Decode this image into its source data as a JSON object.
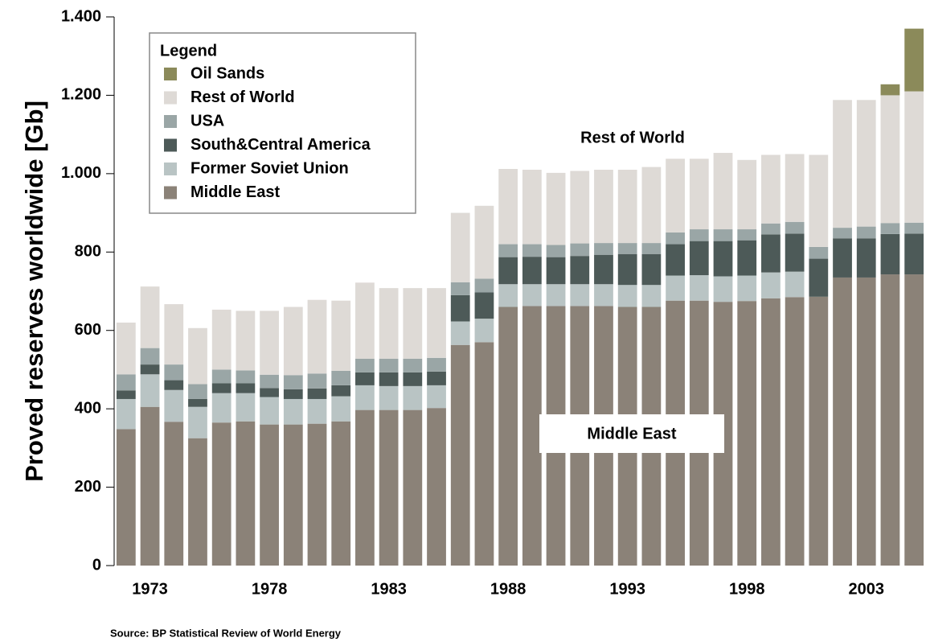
{
  "chart_data": {
    "type": "stacked_bar",
    "y_label": "Proved reserves worldwide [Gb]",
    "source": "Source: BP Statistical Review of World Energy",
    "legend_title": "Legend",
    "annotations": [
      "Rest of World",
      "Middle East"
    ],
    "categories": [
      null,
      "1973",
      null,
      null,
      null,
      null,
      "1978",
      null,
      null,
      null,
      null,
      "1983",
      null,
      null,
      null,
      null,
      "1988",
      null,
      null,
      null,
      null,
      "1993",
      null,
      null,
      null,
      null,
      "1998",
      null,
      null,
      null,
      null,
      "2003",
      null,
      null
    ],
    "series": [
      {
        "name": "Middle East",
        "color": "#8b8278",
        "values": [
          348,
          405,
          367,
          325,
          365,
          368,
          360,
          360,
          362,
          368,
          397,
          397,
          397,
          402,
          563,
          570,
          660,
          662,
          662,
          662,
          662,
          660,
          660,
          676,
          676,
          673,
          675,
          682,
          685,
          686,
          735,
          735,
          743,
          743
        ]
      },
      {
        "name": "Former Soviet Union",
        "color": "#b9c4c4",
        "values": [
          77,
          83,
          81,
          80,
          75,
          72,
          70,
          65,
          63,
          64,
          63,
          61,
          61,
          58,
          60,
          60,
          58,
          56,
          56,
          56,
          56,
          56,
          56,
          64,
          65,
          65,
          65,
          66,
          65,
          0,
          0,
          0,
          0,
          0
        ]
      },
      {
        "name": "South&Central America",
        "color": "#4d5a58",
        "values": [
          22,
          25,
          25,
          20,
          25,
          25,
          23,
          25,
          27,
          28,
          33,
          35,
          35,
          35,
          67,
          67,
          69,
          70,
          69,
          72,
          75,
          79,
          79,
          80,
          87,
          90,
          90,
          97,
          97,
          97,
          100,
          100,
          103,
          104
        ]
      },
      {
        "name": "USA",
        "color": "#9aa6a6",
        "values": [
          41,
          42,
          40,
          38,
          35,
          33,
          34,
          36,
          38,
          37,
          35,
          35,
          35,
          35,
          33,
          35,
          33,
          32,
          31,
          32,
          30,
          28,
          28,
          30,
          30,
          30,
          28,
          28,
          30,
          30,
          27,
          30,
          28,
          28
        ]
      },
      {
        "name": "Rest of World",
        "color": "#dedad6",
        "values": [
          132,
          157,
          154,
          143,
          153,
          152,
          163,
          174,
          188,
          179,
          194,
          180,
          180,
          178,
          177,
          186,
          192,
          190,
          184,
          185,
          187,
          187,
          194,
          188,
          180,
          195,
          177,
          175,
          173,
          235,
          326,
          323,
          326,
          335
        ]
      },
      {
        "name": "Oil Sands",
        "color": "#8b8a5a",
        "values": [
          0,
          0,
          0,
          0,
          0,
          0,
          0,
          0,
          0,
          0,
          0,
          0,
          0,
          0,
          0,
          0,
          0,
          0,
          0,
          0,
          0,
          0,
          0,
          0,
          0,
          0,
          0,
          0,
          0,
          0,
          0,
          0,
          28,
          160
        ]
      }
    ],
    "ylim": [
      0,
      1400
    ],
    "yticks": [
      0,
      200,
      400,
      600,
      800,
      {
        "value": 1000,
        "label": "1.000"
      },
      {
        "value": 1200,
        "label": "1.200"
      },
      {
        "value": 1400,
        "label": "1.400"
      }
    ],
    "legend": "upper left"
  }
}
